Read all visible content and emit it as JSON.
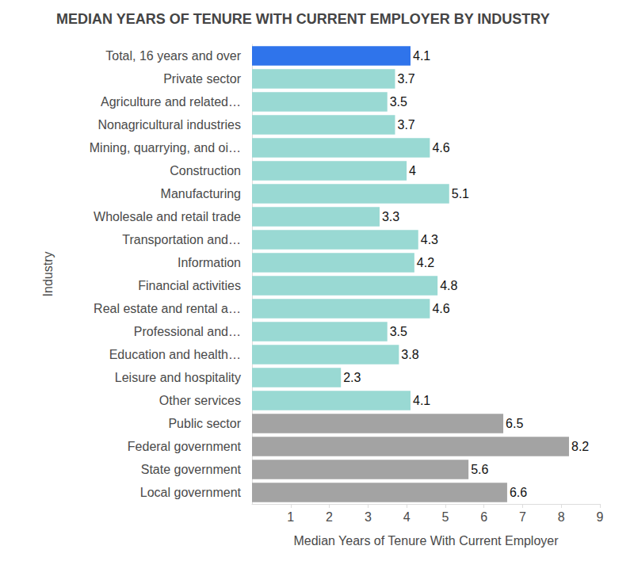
{
  "chart_data": {
    "type": "bar",
    "orientation": "horizontal",
    "title": "MEDIAN YEARS OF TENURE WITH CURRENT EMPLOYER BY INDUSTRY",
    "x_label": "Median Years of Tenure With Current Employer",
    "y_label": "Industry",
    "categories": [
      "Total, 16 years and over",
      "Private sector",
      "Agriculture and related…",
      "Nonagricultural industries",
      "Mining, quarrying, and oi…",
      "Construction",
      "Manufacturing",
      "Wholesale and retail trade",
      "Transportation and…",
      "Information",
      "Financial activities",
      "Real estate and rental a…",
      "Professional and…",
      "Education and health…",
      "Leisure and hospitality",
      "Other services",
      "Public sector",
      "Federal government",
      "State government",
      "Local government"
    ],
    "values": [
      4.1,
      3.7,
      3.5,
      3.7,
      4.6,
      4,
      5.1,
      3.3,
      4.3,
      4.2,
      4.8,
      4.6,
      3.5,
      3.8,
      2.3,
      4.1,
      6.5,
      8.2,
      5.6,
      6.6
    ],
    "colors": [
      "#2f74eb",
      "#99d9d3",
      "#99d9d3",
      "#99d9d3",
      "#99d9d3",
      "#99d9d3",
      "#99d9d3",
      "#99d9d3",
      "#99d9d3",
      "#99d9d3",
      "#99d9d3",
      "#99d9d3",
      "#99d9d3",
      "#99d9d3",
      "#99d9d3",
      "#99d9d3",
      "#a3a3a3",
      "#a3a3a3",
      "#a3a3a3",
      "#a3a3a3"
    ],
    "xlim": [
      0,
      9
    ],
    "xticks": [
      1,
      2,
      3,
      4,
      5,
      6,
      7,
      8,
      9
    ],
    "grid": false,
    "data_labels": true
  }
}
